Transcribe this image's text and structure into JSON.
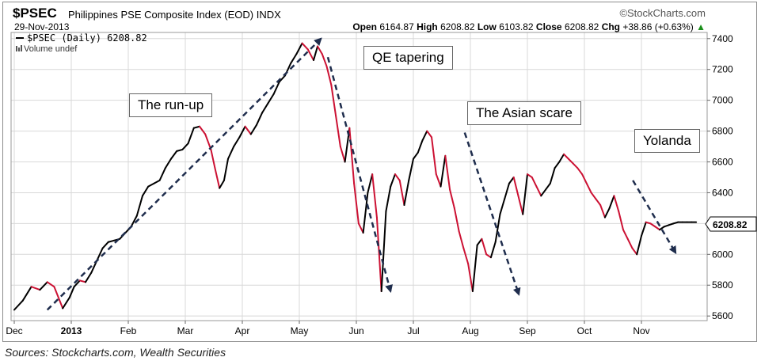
{
  "header": {
    "ticker": "$PSEC",
    "name": "Philippines PSE Composite Index (EOD)",
    "exchange": "INDX",
    "brand": "©StockCharts.com",
    "date": "29-Nov-2013",
    "open_label": "Open",
    "open": "6164.87",
    "high_label": "High",
    "high": "6208.82",
    "low_label": "Low",
    "low": "6103.82",
    "close_label": "Close",
    "close": "6208.82",
    "chg_label": "Chg",
    "chg": "+38.86 (+0.63%)",
    "chg_arrow": "▲"
  },
  "legend": {
    "series": "$PSEC (Daily) 6208.82",
    "volume": "Volume undef"
  },
  "last_value_label": "6208.82",
  "annotations": {
    "runup": "The run-up",
    "qe": "QE tapering",
    "asian": "The Asian scare",
    "yolanda": "Yolanda"
  },
  "source": "Sources: Stockcharts.com, Wealth Securities",
  "colors": {
    "up": "#000000",
    "down": "#cc1133",
    "arrow": "#1f2d4d",
    "grid": "#d8d8d8"
  },
  "chart_data": {
    "type": "line",
    "x_ticks": [
      "Dec",
      "2013",
      "Feb",
      "Mar",
      "Apr",
      "May",
      "Jun",
      "Jul",
      "Aug",
      "Sep",
      "Oct",
      "Nov"
    ],
    "y_ticks": [
      5600,
      5800,
      6000,
      6200,
      6400,
      6600,
      6800,
      7000,
      7200,
      7400
    ],
    "ylim": [
      5570,
      7440
    ],
    "xlim": [
      0,
      12
    ],
    "y_axis": "right",
    "grid": true,
    "series": [
      {
        "name": "$PSEC (Daily)",
        "x": [
          0.0,
          0.15,
          0.3,
          0.45,
          0.58,
          0.7,
          0.85,
          0.97,
          1.05,
          1.15,
          1.25,
          1.35,
          1.45,
          1.55,
          1.65,
          1.75,
          1.85,
          1.95,
          2.05,
          2.15,
          2.25,
          2.35,
          2.45,
          2.55,
          2.65,
          2.75,
          2.85,
          2.95,
          3.05,
          3.15,
          3.25,
          3.35,
          3.45,
          3.52,
          3.6,
          3.68,
          3.75,
          3.85,
          3.95,
          4.05,
          4.15,
          4.25,
          4.35,
          4.45,
          4.55,
          4.65,
          4.75,
          4.85,
          4.95,
          5.05,
          5.15,
          5.25,
          5.32,
          5.4,
          5.48,
          5.56,
          5.64,
          5.72,
          5.8,
          5.88,
          5.96,
          6.04,
          6.12,
          6.2,
          6.28,
          6.36,
          6.44,
          6.52,
          6.6,
          6.68,
          6.76,
          6.84,
          6.92,
          7.0,
          7.08,
          7.16,
          7.24,
          7.32,
          7.4,
          7.48,
          7.56,
          7.64,
          7.72,
          7.8,
          7.88,
          7.96,
          8.04,
          8.12,
          8.2,
          8.28,
          8.36,
          8.44,
          8.52,
          8.6,
          8.68,
          8.76,
          8.84,
          8.92,
          9.0,
          9.08,
          9.16,
          9.24,
          9.32,
          9.4,
          9.48,
          9.56,
          9.64,
          9.72,
          9.8,
          9.88,
          9.96,
          10.04,
          10.12,
          10.2,
          10.28,
          10.36,
          10.44,
          10.52,
          10.6,
          10.68,
          10.76,
          10.84,
          10.92,
          11.0,
          11.08,
          11.16,
          11.24,
          11.32,
          11.4,
          11.48,
          11.56,
          11.64,
          11.72,
          11.8,
          11.88,
          11.96
        ],
        "y": [
          5640,
          5700,
          5790,
          5770,
          5820,
          5790,
          5650,
          5720,
          5790,
          5830,
          5820,
          5880,
          5960,
          6040,
          6080,
          6090,
          6100,
          6140,
          6180,
          6250,
          6380,
          6440,
          6460,
          6480,
          6560,
          6620,
          6670,
          6680,
          6720,
          6820,
          6830,
          6780,
          6680,
          6560,
          6430,
          6480,
          6620,
          6700,
          6760,
          6830,
          6780,
          6840,
          6920,
          6980,
          7040,
          7120,
          7160,
          7240,
          7300,
          7370,
          7330,
          7260,
          7350,
          7300,
          7220,
          7100,
          6900,
          6700,
          6600,
          6820,
          6460,
          6200,
          6140,
          6400,
          6520,
          6240,
          5760,
          6280,
          6440,
          6520,
          6480,
          6320,
          6480,
          6620,
          6660,
          6740,
          6800,
          6760,
          6520,
          6440,
          6640,
          6420,
          6300,
          6150,
          6040,
          5940,
          5760,
          6060,
          6100,
          6000,
          5980,
          6080,
          6260,
          6360,
          6460,
          6500,
          6380,
          6260,
          6520,
          6500,
          6440,
          6380,
          6420,
          6460,
          6560,
          6600,
          6650,
          6620,
          6590,
          6560,
          6520,
          6460,
          6400,
          6360,
          6320,
          6240,
          6300,
          6380,
          6280,
          6160,
          6100,
          6040,
          6000,
          6120,
          6208.82,
          6200,
          6180,
          6160,
          6180,
          6190,
          6200,
          6208.82,
          6208.82,
          6208.82,
          6208.82,
          6208.82
        ]
      }
    ]
  }
}
